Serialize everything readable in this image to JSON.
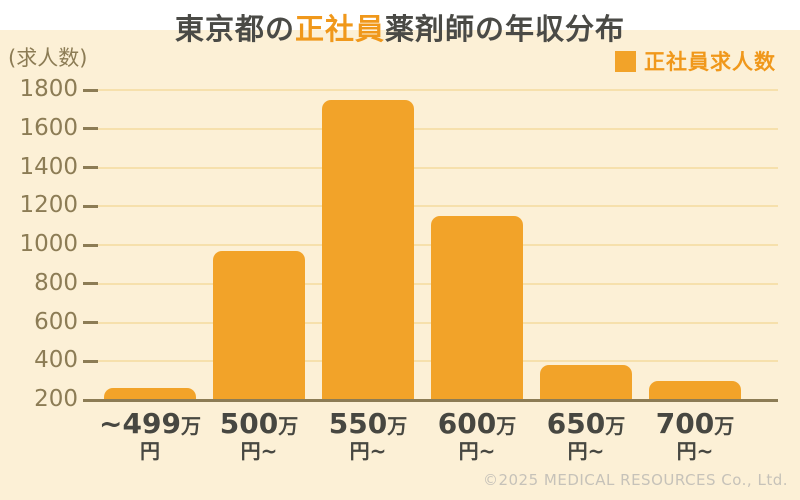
{
  "title": {
    "prefix": "東京都の",
    "highlight": "正社員",
    "suffix": "薬剤師の年収分布"
  },
  "y_axis_unit": "(求人数)",
  "legend": {
    "label": "正社員求人数",
    "swatch_color": "#f2a329"
  },
  "footer": "©2025 MEDICAL RESOURCES Co., Ltd.",
  "colors": {
    "background": "#fcf0d6",
    "header_band": "#ffffff",
    "bar": "#f2a329",
    "accent_text": "#f0981b",
    "axis_text": "#8c7c55",
    "gridline": "#f6e0ac",
    "baseline": "#8c7c55",
    "x_label_text": "#474741",
    "footer_text": "#c6c2b9"
  },
  "chart_data": {
    "type": "bar",
    "title": "東京都の正社員薬剤師の年収分布",
    "series_name": "正社員求人数",
    "categories": [
      "~499万円",
      "500万円~",
      "550万円~",
      "600万円~",
      "650万円~",
      "700万円~"
    ],
    "category_labels": [
      {
        "num": "~499",
        "unit": "万",
        "line2": "円"
      },
      {
        "num": "500",
        "unit": "万",
        "line2": "円~"
      },
      {
        "num": "550",
        "unit": "万",
        "line2": "円~"
      },
      {
        "num": "600",
        "unit": "万",
        "line2": "円~"
      },
      {
        "num": "650",
        "unit": "万",
        "line2": "円~"
      },
      {
        "num": "700",
        "unit": "万",
        "line2": "円~"
      }
    ],
    "values": [
      260,
      970,
      1750,
      1150,
      380,
      300
    ],
    "xlabel": "",
    "ylabel": "求人数",
    "ylim": [
      200,
      1800
    ],
    "yticks": [
      1800,
      1600,
      1400,
      1200,
      1000,
      800,
      600,
      400,
      200
    ],
    "grid": true,
    "legend_position": "top-right"
  }
}
